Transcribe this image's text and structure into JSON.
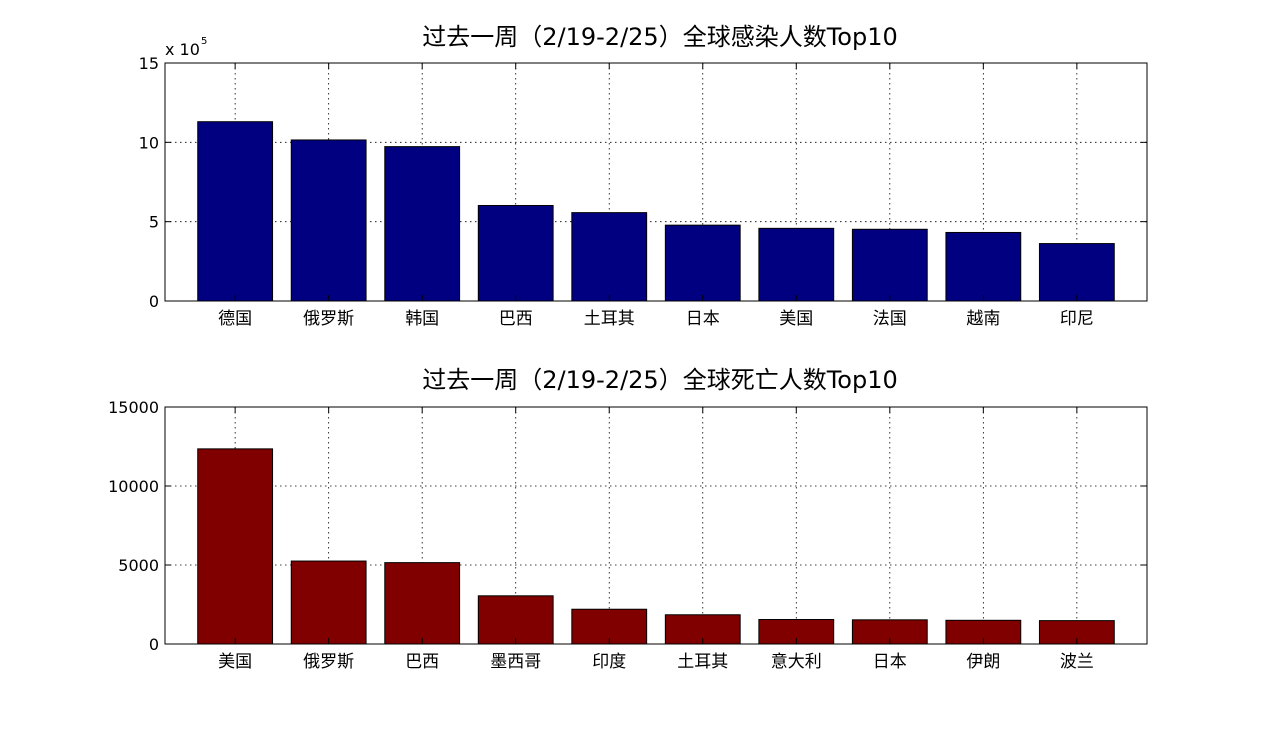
{
  "chart_data": [
    {
      "type": "bar",
      "title": "过去一周（2/19-2/25）全球感染人数Top10",
      "categories": [
        "德国",
        "俄罗斯",
        "韩国",
        "巴西",
        "土耳其",
        "日本",
        "美国",
        "法国",
        "越南",
        "印尼"
      ],
      "values": [
        1130000,
        1015000,
        973000,
        602000,
        557000,
        478000,
        458000,
        452000,
        432000,
        362000
      ],
      "ylim": [
        0,
        1500000
      ],
      "yticks": [
        0,
        5,
        10,
        15
      ],
      "ytick_labels": [
        "0",
        "5",
        "10",
        "15"
      ],
      "y_multiplier": {
        "base": "x 10",
        "exponent": "5"
      },
      "xlabel": "",
      "ylabel": "",
      "grid": true,
      "color": "#000080"
    },
    {
      "type": "bar",
      "title": "过去一周（2/19-2/25）全球死亡人数Top10",
      "categories": [
        "美国",
        "俄罗斯",
        "巴西",
        "墨西哥",
        "印度",
        "土耳其",
        "意大利",
        "日本",
        "伊朗",
        "波兰"
      ],
      "values": [
        12350,
        5250,
        5150,
        3050,
        2200,
        1850,
        1550,
        1530,
        1500,
        1480
      ],
      "ylim": [
        0,
        15000
      ],
      "yticks": [
        0,
        5000,
        10000,
        15000
      ],
      "ytick_labels": [
        "0",
        "5000",
        "10000",
        "15000"
      ],
      "xlabel": "",
      "ylabel": "",
      "grid": true,
      "color": "#800000"
    }
  ]
}
